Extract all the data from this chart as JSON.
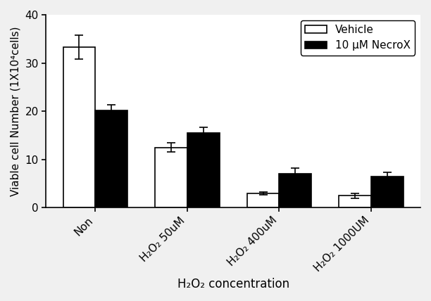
{
  "categories": [
    "Non",
    "H₂O₂ 50uM",
    "H₂O₂ 400uM",
    "H₂O₂ 1000UM"
  ],
  "vehicle_values": [
    33.3,
    12.5,
    3.0,
    2.5
  ],
  "necrox_values": [
    20.2,
    15.5,
    7.0,
    6.5
  ],
  "vehicle_errors": [
    2.5,
    1.0,
    0.3,
    0.5
  ],
  "necrox_errors": [
    1.2,
    1.2,
    1.2,
    0.8
  ],
  "vehicle_color": "#ffffff",
  "necrox_color": "#000000",
  "bar_edgecolor": "#000000",
  "ylabel": "Viable cell Number (1X10⁴cells)",
  "xlabel": "H₂O₂ concentration",
  "ylim": [
    0,
    40
  ],
  "yticks": [
    0,
    10,
    20,
    30,
    40
  ],
  "legend_vehicle": "Vehicle",
  "legend_necrox": "10 μM NecroX",
  "bar_width": 0.35,
  "figure_facecolor": "#f0f0f0",
  "axes_facecolor": "#ffffff",
  "tick_label_rotation": 45,
  "font_size": 11,
  "legend_fontsize": 11,
  "ylabel_fontsize": 11,
  "xlabel_fontsize": 12
}
